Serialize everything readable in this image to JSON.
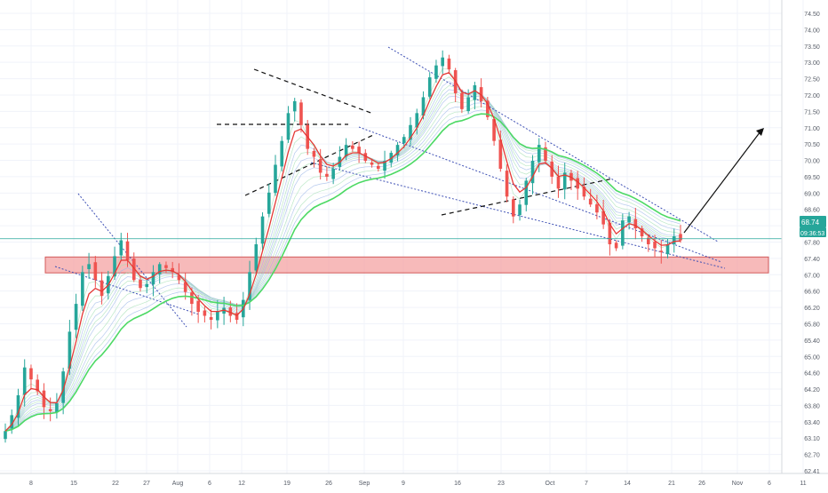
{
  "chart_data": {
    "type": "candlestick",
    "title": "",
    "xlabel": "",
    "ylabel": "",
    "ylim": [
      62.0,
      74.8
    ],
    "grid": true,
    "y_ticks": [
      "74.50",
      "74.00",
      "73.50",
      "73.00",
      "72.50",
      "72.00",
      "71.50",
      "71.00",
      "70.50",
      "70.00",
      "69.50",
      "69.00",
      "68.60",
      "68.20",
      "67.80",
      "67.40",
      "67.00",
      "66.60",
      "66.20",
      "65.80",
      "65.40",
      "65.00",
      "64.60",
      "64.20",
      "63.80",
      "63.40",
      "63.10",
      "62.70",
      "62.41"
    ],
    "x_ticks": [
      "8",
      "15",
      "22",
      "27",
      "Aug",
      "6",
      "12",
      "19",
      "26",
      "Sep",
      "9",
      "16",
      "23",
      "Oct",
      "7",
      "14",
      "21",
      "26",
      "Nov",
      "6",
      "11"
    ],
    "last_price": {
      "label": "68.74",
      "value": 68.74,
      "countdown": "09:36:53"
    },
    "price_color": "#26a69a",
    "support_zone": {
      "from": 67.88,
      "to": 68.28,
      "color": "#f4a3a3"
    },
    "closes": [
      63.9,
      64.3,
      64.8,
      65.5,
      65.2,
      64.9,
      64.5,
      64.4,
      64.6,
      65.4,
      66.4,
      67.1,
      67.9,
      68.1,
      67.7,
      67.3,
      67.8,
      68.3,
      68.7,
      68.2,
      67.7,
      67.5,
      67.6,
      67.9,
      68.1,
      68.0,
      67.9,
      67.7,
      67.4,
      67.1,
      66.9,
      66.8,
      66.7,
      66.9,
      67.0,
      66.8,
      66.7,
      67.2,
      67.9,
      68.6,
      69.3,
      69.9,
      70.6,
      71.2,
      71.9,
      72.2,
      71.6,
      71.0,
      70.8,
      70.4,
      70.3,
      70.5,
      70.8,
      71.1,
      71.0,
      70.9,
      70.7,
      70.6,
      70.5,
      70.7,
      70.9,
      71.1,
      71.3,
      71.6,
      71.9,
      72.3,
      72.8,
      73.1,
      73.3,
      73.0,
      72.4,
      72.0,
      72.3,
      72.6,
      72.2,
      71.8,
      71.2,
      70.5,
      69.8,
      69.3,
      69.6,
      70.2,
      70.7,
      71.1,
      70.7,
      70.3,
      70.0,
      70.4,
      70.2,
      70.0,
      69.8,
      69.6,
      69.4,
      69.1,
      68.6,
      68.5,
      69.2,
      69.3,
      69.0,
      68.8,
      68.6,
      68.5,
      68.4,
      68.6,
      68.8,
      68.7
    ],
    "annotations": [
      "triangle",
      "channel",
      "falling-wedge",
      "projection-arrow"
    ]
  }
}
